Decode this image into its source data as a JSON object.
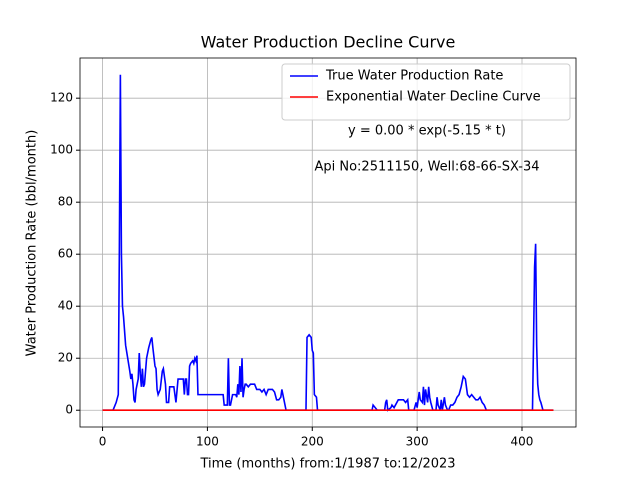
{
  "chart_data": {
    "type": "line",
    "title": "Water Production Decline Curve",
    "xlabel": "Time (months) from:1/1987 to:12/2023",
    "ylabel": "Water Production Rate (bbl/month)",
    "annotations": [
      "y = 0.00 * exp(-5.15 * t)",
      "Api No:2511150, Well:68-66-SX-34"
    ],
    "xlim": [
      -21.5,
      451.5
    ],
    "ylim": [
      -6.45,
      135.45
    ],
    "xticks": [
      0,
      100,
      200,
      300,
      400
    ],
    "yticks": [
      0,
      20,
      40,
      60,
      80,
      100,
      120
    ],
    "grid": true,
    "legend": "upper right",
    "series": [
      {
        "name": "True Water Production Rate",
        "color": "#0000ff",
        "x": [
          0,
          10,
          13,
          15,
          16,
          17,
          18,
          19,
          20,
          22,
          24,
          26,
          27,
          28,
          29,
          30,
          31,
          32,
          34,
          35,
          36,
          37,
          38,
          39,
          40,
          42,
          44,
          46,
          47,
          48,
          50,
          51,
          52,
          53,
          55,
          57,
          58,
          60,
          61,
          63,
          64,
          68,
          70,
          72,
          77,
          78,
          79,
          80,
          81,
          82,
          83,
          84,
          86,
          87,
          88,
          89,
          90,
          91,
          110,
          115,
          116,
          119,
          120,
          121,
          122,
          124,
          127,
          128,
          129,
          130,
          131,
          132,
          133,
          134,
          135,
          136,
          137,
          139,
          141,
          143,
          145,
          147,
          150,
          152,
          154,
          156,
          158,
          162,
          164,
          166,
          168,
          170,
          171,
          173,
          175,
          194,
          195,
          197,
          199,
          200,
          201,
          202,
          204,
          205,
          257,
          258,
          260,
          262,
          269,
          270,
          271,
          272,
          275,
          276,
          278,
          282,
          285,
          287,
          289,
          291,
          292,
          297,
          299,
          300,
          302,
          303,
          305,
          306,
          307,
          308,
          310,
          311,
          312,
          313,
          315,
          318,
          319,
          320,
          322,
          323,
          324,
          326,
          327,
          329,
          330,
          332,
          334,
          336,
          338,
          340,
          342,
          344,
          346,
          348,
          350,
          352,
          354,
          356,
          358,
          360,
          362,
          364,
          366,
          410,
          411,
          412,
          413,
          414,
          415,
          416,
          417,
          418,
          420,
          430
        ],
        "values": [
          0,
          0,
          3,
          6,
          60,
          129,
          60,
          40,
          36,
          25,
          20,
          15,
          12,
          14,
          10,
          4,
          3,
          8,
          12,
          22,
          14,
          9,
          16,
          9,
          10,
          20,
          24,
          27,
          28,
          24,
          17,
          16,
          8,
          6,
          8,
          15,
          16,
          10,
          3,
          3,
          9,
          9,
          3,
          12,
          12,
          6,
          12,
          12,
          6,
          6,
          17,
          18,
          19,
          18,
          20,
          19,
          21,
          6,
          6,
          6,
          2,
          2,
          20,
          2,
          2,
          6,
          6,
          5,
          10,
          6,
          17,
          7,
          20,
          5,
          8,
          10,
          10,
          9,
          10,
          10,
          10,
          8,
          8,
          7,
          8,
          6,
          8,
          8,
          7,
          4,
          4,
          5,
          8,
          4,
          0,
          0,
          28,
          29,
          28,
          23,
          22,
          6,
          5,
          0,
          0,
          2,
          1,
          0,
          0,
          3,
          4,
          0,
          1,
          2,
          1,
          4,
          4,
          4,
          3,
          4,
          0,
          0,
          3,
          1,
          7,
          4,
          3,
          9,
          2,
          8,
          3,
          9,
          5,
          3,
          0,
          0,
          5,
          2,
          0,
          4,
          0,
          5,
          2,
          0,
          0,
          2,
          2,
          3,
          5,
          6,
          9,
          13,
          12,
          6,
          5,
          6,
          5,
          4,
          4,
          5,
          3,
          2,
          0,
          0,
          26,
          55,
          64,
          25,
          10,
          6,
          4,
          3,
          0,
          0
        ]
      },
      {
        "name": "Exponential Water Decline Curve",
        "color": "#ff0000",
        "x": [
          0,
          430
        ],
        "values": [
          0,
          0
        ]
      }
    ]
  }
}
